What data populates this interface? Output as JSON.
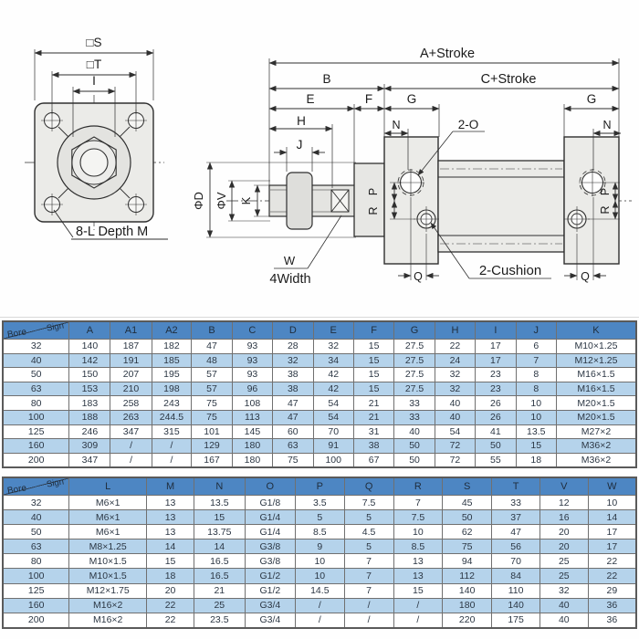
{
  "drawing": {
    "front_view": {
      "dim_s": "□S",
      "dim_t": "□T",
      "dim_i": "I",
      "hole_label": "8-L Depth M"
    },
    "side_view": {
      "dim_a": "A+Stroke",
      "dim_b": "B",
      "dim_c": "C+Stroke",
      "dim_e": "E",
      "dim_f": "F",
      "dim_g": "G",
      "dim_h": "H",
      "dim_n": "N",
      "dim_j": "J",
      "dim_d": "ΦD",
      "dim_v": "ΦV",
      "dim_k": "K",
      "dim_p": "P",
      "dim_r": "R",
      "dim_q": "Q",
      "port_label": "2-O",
      "rod_flat_w": "W",
      "rod_flat_label": "4Width",
      "cushion_label": "2-Cushion"
    }
  },
  "table1": {
    "corner_top": "Sign",
    "corner_bottom": "Bore",
    "columns": [
      "A",
      "A1",
      "A2",
      "B",
      "C",
      "D",
      "E",
      "F",
      "G",
      "H",
      "I",
      "J",
      "K"
    ],
    "rows": [
      [
        "32",
        "140",
        "187",
        "182",
        "47",
        "93",
        "28",
        "32",
        "15",
        "27.5",
        "22",
        "17",
        "6",
        "M10×1.25"
      ],
      [
        "40",
        "142",
        "191",
        "185",
        "48",
        "93",
        "32",
        "34",
        "15",
        "27.5",
        "24",
        "17",
        "7",
        "M12×1.25"
      ],
      [
        "50",
        "150",
        "207",
        "195",
        "57",
        "93",
        "38",
        "42",
        "15",
        "27.5",
        "32",
        "23",
        "8",
        "M16×1.5"
      ],
      [
        "63",
        "153",
        "210",
        "198",
        "57",
        "96",
        "38",
        "42",
        "15",
        "27.5",
        "32",
        "23",
        "8",
        "M16×1.5"
      ],
      [
        "80",
        "183",
        "258",
        "243",
        "75",
        "108",
        "47",
        "54",
        "21",
        "33",
        "40",
        "26",
        "10",
        "M20×1.5"
      ],
      [
        "100",
        "188",
        "263",
        "244.5",
        "75",
        "113",
        "47",
        "54",
        "21",
        "33",
        "40",
        "26",
        "10",
        "M20×1.5"
      ],
      [
        "125",
        "246",
        "347",
        "315",
        "101",
        "145",
        "60",
        "70",
        "31",
        "40",
        "54",
        "41",
        "13.5",
        "M27×2"
      ],
      [
        "160",
        "309",
        "/",
        "/",
        "129",
        "180",
        "63",
        "91",
        "38",
        "50",
        "72",
        "50",
        "15",
        "M36×2"
      ],
      [
        "200",
        "347",
        "/",
        "/",
        "167",
        "180",
        "75",
        "100",
        "67",
        "50",
        "72",
        "55",
        "18",
        "M36×2"
      ]
    ]
  },
  "table2": {
    "corner_top": "Sign",
    "corner_bottom": "Bore",
    "columns": [
      "L",
      "M",
      "N",
      "O",
      "P",
      "Q",
      "R",
      "S",
      "T",
      "V",
      "W"
    ],
    "rows": [
      [
        "32",
        "M6×1",
        "13",
        "13.5",
        "G1/8",
        "3.5",
        "7.5",
        "7",
        "45",
        "33",
        "12",
        "10"
      ],
      [
        "40",
        "M6×1",
        "13",
        "15",
        "G1/4",
        "5",
        "5",
        "7.5",
        "50",
        "37",
        "16",
        "14"
      ],
      [
        "50",
        "M6×1",
        "13",
        "13.75",
        "G1/4",
        "8.5",
        "4.5",
        "10",
        "62",
        "47",
        "20",
        "17"
      ],
      [
        "63",
        "M8×1.25",
        "14",
        "14",
        "G3/8",
        "9",
        "5",
        "8.5",
        "75",
        "56",
        "20",
        "17"
      ],
      [
        "80",
        "M10×1.5",
        "15",
        "16.5",
        "G3/8",
        "10",
        "7",
        "13",
        "94",
        "70",
        "25",
        "22"
      ],
      [
        "100",
        "M10×1.5",
        "18",
        "16.5",
        "G1/2",
        "10",
        "7",
        "13",
        "112",
        "84",
        "25",
        "22"
      ],
      [
        "125",
        "M12×1.75",
        "20",
        "21",
        "G1/2",
        "14.5",
        "7",
        "15",
        "140",
        "110",
        "32",
        "29"
      ],
      [
        "160",
        "M16×2",
        "22",
        "25",
        "G3/4",
        "/",
        "/",
        "/",
        "180",
        "140",
        "40",
        "36"
      ],
      [
        "200",
        "M16×2",
        "22",
        "23.5",
        "G3/4",
        "/",
        "/",
        "/",
        "220",
        "175",
        "40",
        "36"
      ]
    ]
  },
  "colors": {
    "header_blue": "#4d86c3",
    "row_alt_blue": "#b5d3eb",
    "row_white": "#ffffff",
    "grid_line": "#707070",
    "drawing_line": "#2f2f2f",
    "fill_light": "#ebebe8",
    "fill_mid": "#e0e0dd"
  }
}
